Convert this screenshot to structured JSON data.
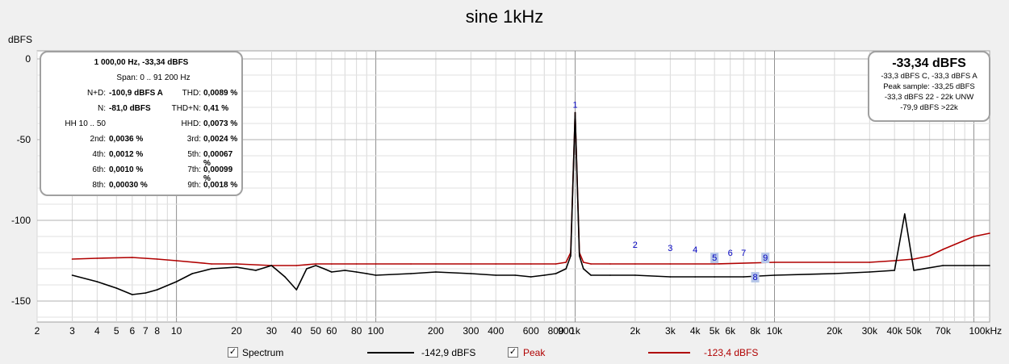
{
  "title": "sine 1kHz",
  "chart_data": {
    "type": "line",
    "title": "sine 1kHz",
    "ylabel": "dBFS",
    "xscale": "log",
    "xlim": [
      2,
      120000
    ],
    "ylim": [
      -163,
      5
    ],
    "y_ticks": [
      0,
      -50,
      -100,
      -150
    ],
    "y_tick_labels": [
      "0",
      "-50",
      "-100",
      "-150"
    ],
    "x_ticks": [
      2,
      3,
      4,
      5,
      6,
      7,
      8,
      10,
      20,
      30,
      40,
      50,
      60,
      80,
      100,
      200,
      300,
      400,
      600,
      800,
      900,
      1000,
      2000,
      3000,
      4000,
      5000,
      6000,
      8000,
      10000,
      20000,
      30000,
      40000,
      50000,
      70000,
      100000
    ],
    "x_tick_labels": [
      "2",
      "3",
      "4",
      "5",
      "6",
      "7",
      "8",
      "10",
      "20",
      "30",
      "40",
      "50",
      "60",
      "80",
      "100",
      "200",
      "300",
      "400",
      "600",
      "800",
      "900",
      "1k",
      "2k",
      "3k",
      "4k",
      "5k",
      "6k",
      "8k",
      "10k",
      "20k",
      "30k",
      "40k",
      "50k",
      "70k",
      "100kHz"
    ],
    "grid": true,
    "series": [
      {
        "name": "Spectrum",
        "color": "#000000",
        "x": [
          3,
          4,
          5,
          6,
          7,
          8,
          10,
          12,
          15,
          20,
          25,
          30,
          35,
          40,
          45,
          50,
          55,
          60,
          70,
          80,
          90,
          100,
          150,
          200,
          300,
          400,
          500,
          600,
          700,
          800,
          900,
          950,
          1000,
          1050,
          1100,
          1200,
          1500,
          2000,
          3000,
          4000,
          5000,
          7000,
          10000,
          20000,
          30000,
          40000,
          45000,
          50000,
          70000,
          100000,
          120000
        ],
        "y": [
          -134,
          -138,
          -142,
          -146,
          -145,
          -143,
          -138,
          -133,
          -130,
          -129,
          -131,
          -128,
          -135,
          -143,
          -130,
          -128,
          -130,
          -132,
          -131,
          -132,
          -133,
          -134,
          -133,
          -132,
          -133,
          -134,
          -134,
          -135,
          -134,
          -133,
          -130,
          -122,
          -33.3,
          -122,
          -130,
          -134,
          -134,
          -134,
          -135,
          -135,
          -135,
          -135,
          -134,
          -133,
          -132,
          -131,
          -96,
          -131,
          -128,
          -128,
          -128
        ]
      },
      {
        "name": "Peak",
        "color": "#b00000",
        "x": [
          3,
          4,
          6,
          8,
          10,
          15,
          20,
          30,
          40,
          50,
          60,
          80,
          100,
          150,
          200,
          300,
          400,
          600,
          800,
          900,
          950,
          1000,
          1050,
          1100,
          1200,
          1500,
          2000,
          3000,
          5000,
          10000,
          20000,
          30000,
          40000,
          50000,
          60000,
          70000,
          100000,
          120000
        ],
        "y": [
          -124,
          -123.5,
          -123,
          -124,
          -125,
          -127,
          -127,
          -128,
          -128,
          -127,
          -127,
          -127,
          -127,
          -127,
          -127,
          -127,
          -127,
          -127,
          -127,
          -126,
          -120,
          -33.3,
          -120,
          -126,
          -127,
          -127,
          -127,
          -127,
          -127,
          -126,
          -126,
          -126,
          -125,
          -124,
          -122,
          -118,
          -110,
          -108
        ]
      }
    ],
    "harmonic_markers": [
      {
        "label": "1",
        "freq": 1000,
        "level": -33.3
      },
      {
        "label": "2",
        "freq": 2000,
        "level": -120
      },
      {
        "label": "3",
        "freq": 3000,
        "level": -122
      },
      {
        "label": "4",
        "freq": 4000,
        "level": -123
      },
      {
        "label": "5",
        "freq": 5000,
        "level": -128
      },
      {
        "label": "6",
        "freq": 6000,
        "level": -125
      },
      {
        "label": "7",
        "freq": 7000,
        "level": -125
      },
      {
        "label": "8",
        "freq": 8000,
        "level": -140
      },
      {
        "label": "9",
        "freq": 9000,
        "level": -128
      }
    ]
  },
  "stats": {
    "header": "1 000,00 Hz, -33,34 dBFS",
    "span": "Span: 0 .. 91 200 Hz",
    "rows": [
      {
        "l1": "N+D:",
        "v1": "-100,9 dBFS A",
        "l2": "THD:",
        "v2": "0,0089 %"
      },
      {
        "l1": "N:",
        "v1": "-81,0 dBFS",
        "l2": "THD+N:",
        "v2": "0,41 %"
      },
      {
        "l1": "HH 10 .. 50",
        "v1": "",
        "l2": "HHD:",
        "v2": "0,0073 %"
      },
      {
        "l1": "2nd:",
        "v1": "0,0036 %",
        "l2": "3rd:",
        "v2": "0,0024 %"
      },
      {
        "l1": "4th:",
        "v1": "0,0012 %",
        "l2": "5th:",
        "v2": "0,00067 %"
      },
      {
        "l1": "6th:",
        "v1": "0,0010 %",
        "l2": "7th:",
        "v2": "0,00099 %"
      },
      {
        "l1": "8th:",
        "v1": "0,00030 %",
        "l2": "9th:",
        "v2": "0,0018 %"
      }
    ]
  },
  "peak_box": {
    "big": "-33,34 dBFS",
    "lines": [
      "-33,3 dBFS C, -33,3 dBFS A",
      "Peak sample: -33,25 dBFS",
      "-33,3 dBFS 22 - 22k UNW",
      "-79,9 dBFS >22k"
    ]
  },
  "legend": {
    "spectrum_label": "Spectrum",
    "spectrum_value": "-142,9 dBFS",
    "peak_label": "Peak",
    "peak_value": "-123,4 dBFS",
    "check_glyph": "✓",
    "spectrum_color": "#000000",
    "peak_color": "#b00000"
  }
}
